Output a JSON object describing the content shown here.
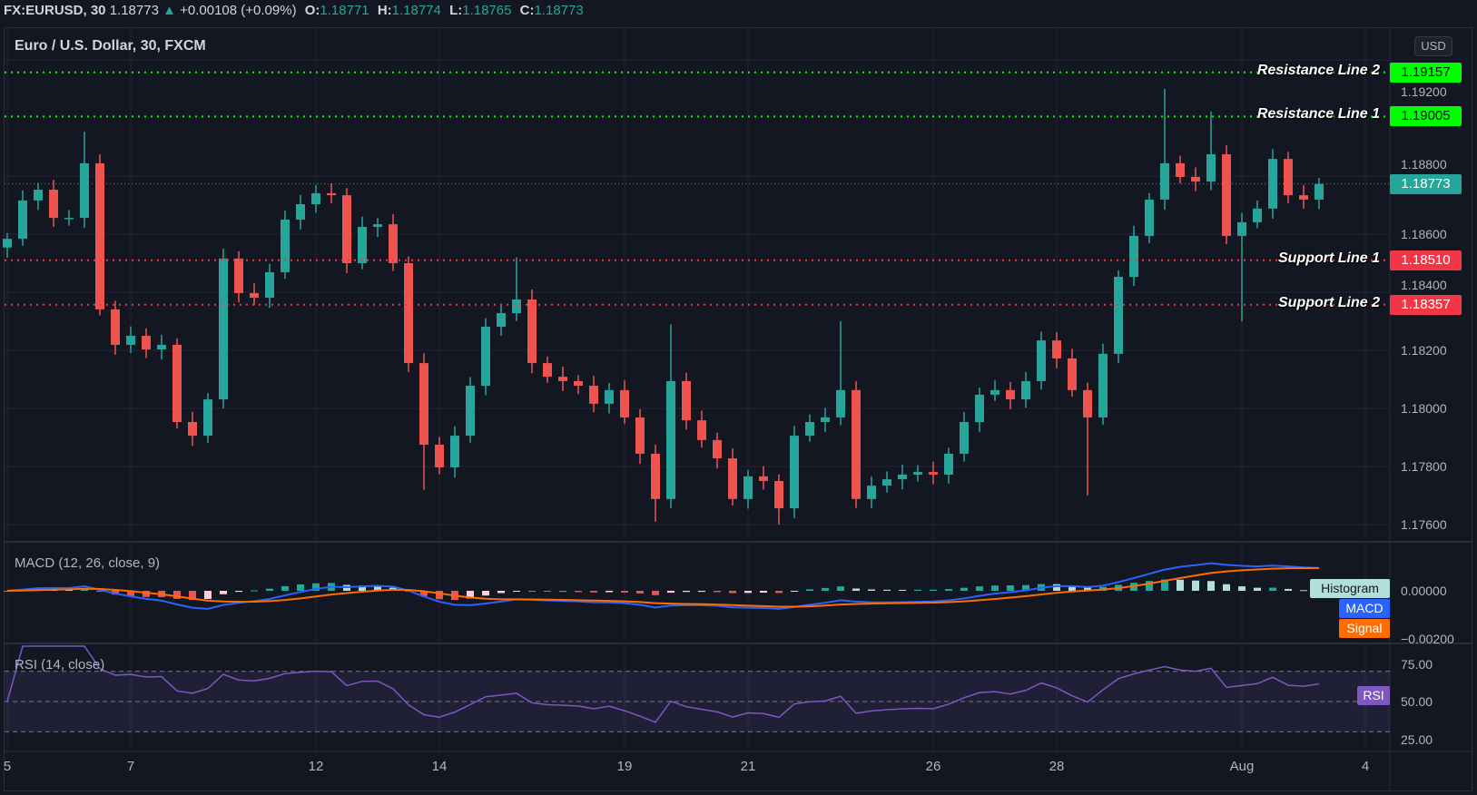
{
  "header": {
    "symbol": "FX:EURUSD, 30",
    "last": "1.18773",
    "change_arrow": "▲",
    "change": "+0.00108 (+0.09%)",
    "o_label": "O:",
    "o": "1.18771",
    "h_label": "H:",
    "h": "1.18774",
    "l_label": "L:",
    "l": "1.18765",
    "c_label": "C:",
    "c": "1.18773"
  },
  "chart_title": "Euro / U.S. Dollar, 30, FXCM",
  "currency": "USD",
  "price_axis": {
    "ticks": [
      {
        "value": 1.192,
        "label": "1.19200"
      },
      {
        "value": 1.188,
        "label": "1.18800"
      },
      {
        "value": 1.186,
        "label": "1.18600"
      },
      {
        "value": 1.184,
        "label": "1.18400"
      },
      {
        "value": 1.182,
        "label": "1.18200"
      },
      {
        "value": 1.18,
        "label": "1.18000"
      },
      {
        "value": 1.178,
        "label": "1.17800"
      },
      {
        "value": 1.176,
        "label": "1.17600"
      }
    ]
  },
  "levels": [
    {
      "name": "Resistance Line 2",
      "value": 1.19157,
      "label": "1.19157",
      "color": "#00ff00",
      "text_color": "#131722"
    },
    {
      "name": "Resistance Line 1",
      "value": 1.19005,
      "label": "1.19005",
      "color": "#00ff00",
      "text_color": "#131722"
    },
    {
      "name": "Support Line 1",
      "value": 1.1851,
      "label": "1.18510",
      "color": "#f23645",
      "text_color": "#ffffff"
    },
    {
      "name": "Support Line 2",
      "value": 1.18357,
      "label": "1.18357",
      "color": "#f23645",
      "text_color": "#ffffff"
    }
  ],
  "current_price": {
    "value": 1.18773,
    "label": "1.18773",
    "color": "#26a69a"
  },
  "colors": {
    "up": "#26a69a",
    "down": "#ef5350",
    "grid": "#232632",
    "macd": "#2962ff",
    "signal": "#ff6d00",
    "rsi": "#7e57c2"
  },
  "macd": {
    "title": "MACD (12, 26, close, 9)",
    "histogram_label": "Histogram",
    "macd_label": "MACD",
    "signal_label": "Signal",
    "axis": [
      {
        "value": 0,
        "label": "0.00000"
      },
      {
        "value": -0.002,
        "label": "−0.00200"
      }
    ]
  },
  "rsi": {
    "title": "RSI (14, close)",
    "label": "RSI",
    "axis": [
      {
        "value": 75,
        "label": "75.00"
      },
      {
        "value": 50,
        "label": "50.00"
      },
      {
        "value": 25,
        "label": "25.00"
      }
    ],
    "band": [
      30,
      70
    ]
  },
  "time_axis": [
    "5",
    "7",
    "12",
    "14",
    "19",
    "21",
    "26",
    "28",
    "Aug",
    "4"
  ],
  "chart_data": {
    "type": "candlestick",
    "title": "",
    "ylim": [
      1.1755,
      1.1925
    ],
    "x_ticks": [
      "5",
      "7",
      "12",
      "14",
      "19",
      "21",
      "26",
      "28",
      "Aug",
      "4"
    ],
    "close": [
      1.18584,
      1.18716,
      1.18753,
      1.18656,
      1.18656,
      1.18844,
      1.18341,
      1.18219,
      1.1825,
      1.18203,
      1.18219,
      1.17953,
      1.17906,
      1.18031,
      1.18516,
      1.18397,
      1.18381,
      1.18469,
      1.1865,
      1.18703,
      1.18741,
      1.18734,
      1.185,
      1.18625,
      1.18634,
      1.185,
      1.18156,
      1.17875,
      1.17797,
      1.17906,
      1.18078,
      1.18281,
      1.18328,
      1.18375,
      1.18156,
      1.18109,
      1.18094,
      1.18078,
      1.18016,
      1.18063,
      1.17969,
      1.17844,
      1.17688,
      1.18094,
      1.17959,
      1.17891,
      1.17828,
      1.17688,
      1.17766,
      1.1775,
      1.17656,
      1.17906,
      1.17953,
      1.17969,
      1.18063,
      1.17688,
      1.17734,
      1.17756,
      1.17772,
      1.17781,
      1.17772,
      1.17844,
      1.17953,
      1.18047,
      1.18063,
      1.18031,
      1.18094,
      1.18234,
      1.18172,
      1.18063,
      1.17969,
      1.18188,
      1.18453,
      1.18594,
      1.18719,
      1.18844,
      1.18797,
      1.18781,
      1.18875,
      1.18594,
      1.18641,
      1.18688,
      1.18859,
      1.18734,
      1.18719,
      1.18773
    ],
    "wick_extremes": [
      {
        "bar": 5,
        "high": 1.18953
      },
      {
        "bar": 27,
        "low": 1.1772
      },
      {
        "bar": 33,
        "high": 1.1852
      },
      {
        "bar": 42,
        "low": 1.1761
      },
      {
        "bar": 43,
        "high": 1.1829
      },
      {
        "bar": 50,
        "low": 1.176
      },
      {
        "bar": 54,
        "high": 1.183
      },
      {
        "bar": 70,
        "low": 1.177
      },
      {
        "bar": 75,
        "high": 1.191
      },
      {
        "bar": 78,
        "high": 1.19022
      },
      {
        "bar": 80,
        "low": 1.183
      }
    ]
  }
}
